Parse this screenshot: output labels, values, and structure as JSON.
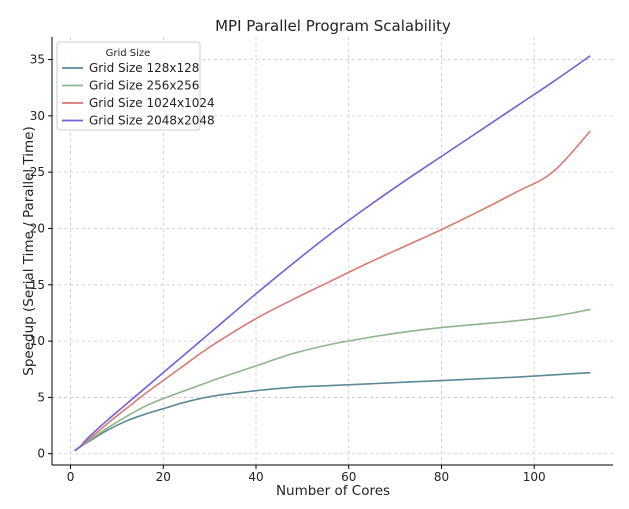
{
  "chart_data": {
    "type": "line",
    "title": "MPI Parallel Program Scalability",
    "xlabel": "Number of Cores",
    "ylabel": "Speedup (Serial Time / Parallel Time)",
    "xlim": [
      -4,
      117
    ],
    "ylim": [
      -1,
      37
    ],
    "xticks": [
      0,
      20,
      40,
      60,
      80,
      100
    ],
    "yticks": [
      0,
      5,
      10,
      15,
      20,
      25,
      30,
      35
    ],
    "grid": true,
    "legend": {
      "title": "Grid Size",
      "position": "top-left"
    },
    "x": [
      1,
      2,
      4,
      8,
      12,
      16,
      20,
      24,
      28,
      32,
      40,
      48,
      56,
      64,
      72,
      80,
      88,
      96,
      104,
      112
    ],
    "series": [
      {
        "name": "Grid Size 128x128",
        "color": "#5b8a96",
        "values": [
          0.3,
          0.6,
          1.1,
          2.1,
          2.9,
          3.5,
          4.0,
          4.5,
          4.9,
          5.2,
          5.6,
          5.9,
          6.05,
          6.2,
          6.35,
          6.5,
          6.65,
          6.8,
          7.0,
          7.2
        ]
      },
      {
        "name": "Grid Size 256x256",
        "color": "#8db58a",
        "values": [
          0.3,
          0.6,
          1.2,
          2.3,
          3.3,
          4.2,
          4.9,
          5.5,
          6.1,
          6.7,
          7.8,
          8.9,
          9.7,
          10.3,
          10.8,
          11.2,
          11.5,
          11.8,
          12.2,
          12.8
        ]
      },
      {
        "name": "Grid Size 1024x1024",
        "color": "#d97a72",
        "values": [
          0.3,
          0.6,
          1.3,
          2.7,
          4.0,
          5.3,
          6.5,
          7.7,
          8.9,
          10.0,
          12.0,
          13.7,
          15.3,
          16.9,
          18.4,
          19.9,
          21.5,
          23.2,
          25.0,
          28.6
        ]
      },
      {
        "name": "Grid Size 2048x2048",
        "color": "#7060d8",
        "values": [
          0.3,
          0.6,
          1.5,
          3.0,
          4.4,
          5.8,
          7.2,
          8.6,
          10.0,
          11.4,
          14.2,
          16.9,
          19.5,
          21.9,
          24.2,
          26.4,
          28.6,
          30.8,
          33.0,
          35.3
        ]
      }
    ]
  }
}
